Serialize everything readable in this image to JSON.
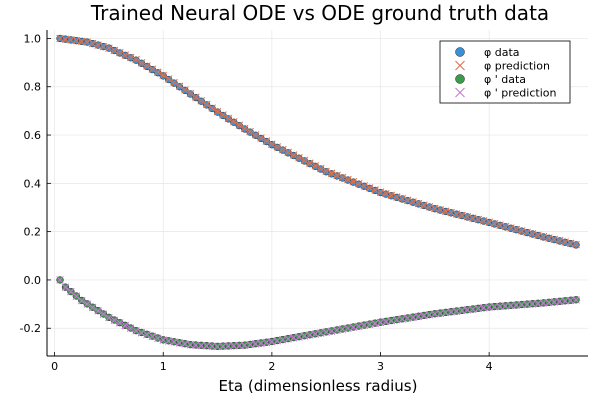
{
  "chart_data": {
    "type": "scatter",
    "title": "Trained Neural ODE vs ODE ground truth data",
    "xlabel": "Eta (dimensionless radius)",
    "ylabel": "",
    "xlim": [
      -0.07,
      4.91
    ],
    "ylim": [
      -0.315,
      1.035
    ],
    "x_ticks": [
      0,
      1,
      2,
      3,
      4
    ],
    "y_ticks": [
      -0.2,
      0.0,
      0.2,
      0.4,
      0.6,
      0.8,
      1.0
    ],
    "x_tick_labels": [
      "0",
      "1",
      "2",
      "3",
      "4"
    ],
    "y_tick_labels": [
      "-0.2",
      "0.0",
      "0.2",
      "0.4",
      "0.6",
      "0.8",
      "1.0"
    ],
    "grid": true,
    "legend_position": "top-right",
    "x_start": 0.05,
    "x_end": 4.8,
    "x_step": 0.05,
    "series": [
      {
        "name": "φ data",
        "marker": "circle",
        "color": "#3a8fd6",
        "curve_points": [
          [
            0.05,
            1.0
          ],
          [
            0.3,
            0.985
          ],
          [
            0.5,
            0.96
          ],
          [
            0.75,
            0.91
          ],
          [
            1.0,
            0.845
          ],
          [
            1.25,
            0.77
          ],
          [
            1.5,
            0.695
          ],
          [
            1.75,
            0.625
          ],
          [
            2.0,
            0.56
          ],
          [
            2.5,
            0.448
          ],
          [
            3.0,
            0.362
          ],
          [
            3.5,
            0.295
          ],
          [
            4.0,
            0.238
          ],
          [
            4.5,
            0.178
          ],
          [
            4.8,
            0.145
          ]
        ]
      },
      {
        "name": "φ prediction",
        "marker": "x",
        "color": "#e0714b",
        "curve_points": [
          [
            0.05,
            1.0
          ],
          [
            0.3,
            0.985
          ],
          [
            0.5,
            0.96
          ],
          [
            0.75,
            0.912
          ],
          [
            1.0,
            0.847
          ],
          [
            1.25,
            0.772
          ],
          [
            1.5,
            0.697
          ],
          [
            1.75,
            0.627
          ],
          [
            2.0,
            0.562
          ],
          [
            2.5,
            0.45
          ],
          [
            3.0,
            0.364
          ],
          [
            3.5,
            0.296
          ],
          [
            4.0,
            0.239
          ],
          [
            4.5,
            0.179
          ],
          [
            4.8,
            0.146
          ]
        ]
      },
      {
        "name": "φ ' data",
        "marker": "circle",
        "color": "#3c9a4a",
        "curve_points": [
          [
            0.05,
            0.0
          ],
          [
            0.1,
            -0.03
          ],
          [
            0.25,
            -0.085
          ],
          [
            0.5,
            -0.155
          ],
          [
            0.75,
            -0.21
          ],
          [
            1.0,
            -0.248
          ],
          [
            1.25,
            -0.268
          ],
          [
            1.5,
            -0.275
          ],
          [
            1.75,
            -0.27
          ],
          [
            2.0,
            -0.255
          ],
          [
            2.5,
            -0.215
          ],
          [
            3.0,
            -0.175
          ],
          [
            3.5,
            -0.14
          ],
          [
            4.0,
            -0.112
          ],
          [
            4.5,
            -0.095
          ],
          [
            4.8,
            -0.082
          ]
        ]
      },
      {
        "name": "φ ' prediction",
        "marker": "x",
        "color": "#c57ad6",
        "curve_points": [
          [
            0.05,
            0.0
          ],
          [
            0.1,
            -0.03
          ],
          [
            0.25,
            -0.086
          ],
          [
            0.5,
            -0.156
          ],
          [
            0.75,
            -0.211
          ],
          [
            1.0,
            -0.249
          ],
          [
            1.25,
            -0.269
          ],
          [
            1.5,
            -0.276
          ],
          [
            1.75,
            -0.271
          ],
          [
            2.0,
            -0.256
          ],
          [
            2.5,
            -0.216
          ],
          [
            3.0,
            -0.176
          ],
          [
            3.5,
            -0.141
          ],
          [
            4.0,
            -0.113
          ],
          [
            4.5,
            -0.096
          ],
          [
            4.8,
            -0.083
          ]
        ]
      }
    ]
  }
}
